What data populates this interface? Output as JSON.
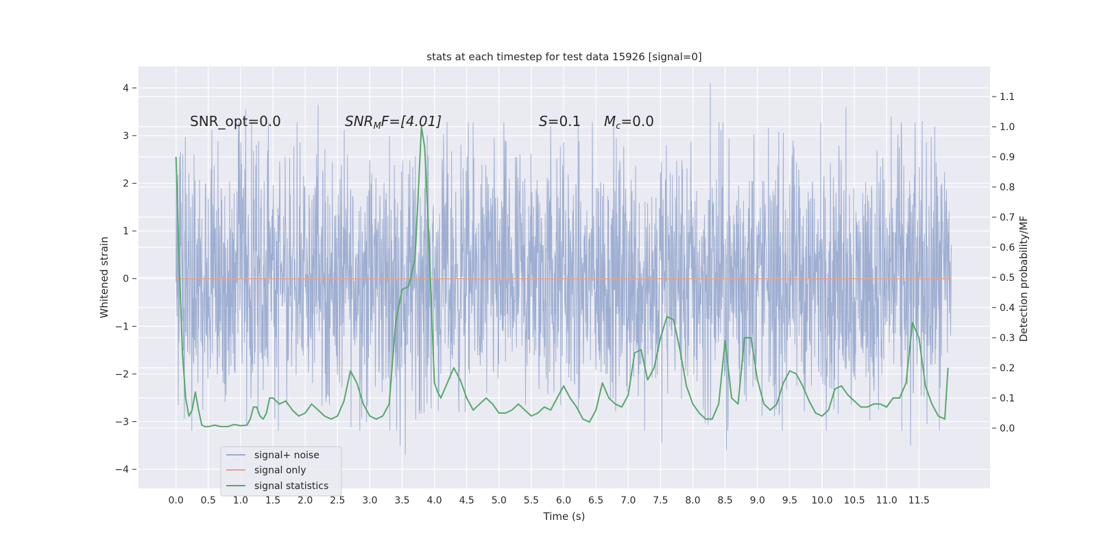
{
  "chart_data": {
    "type": "line",
    "title": "stats at each timestep for test data 15926 [signal=0]",
    "xlabel": "Time (s)",
    "ylabel_left": "Whitened strain",
    "ylabel_right": "Detection probability/MF",
    "xlim": [
      -0.58,
      12.6
    ],
    "ylim_left": [
      -4.4,
      4.45
    ],
    "ylim_right": [
      -0.2,
      1.2
    ],
    "x_ticks": [
      "0.0",
      "0.5",
      "1.0",
      "1.5",
      "2.0",
      "2.5",
      "3.0",
      "3.5",
      "4.0",
      "4.5",
      "5.0",
      "5.5",
      "6.0",
      "6.5",
      "7.0",
      "7.5",
      "8.0",
      "8.5",
      "9.0",
      "9.5",
      "10.0",
      "10.5",
      "11.0",
      "11.5"
    ],
    "y_left_ticks": [
      "4",
      "3",
      "2",
      "1",
      "0",
      "−1",
      "−2",
      "−3",
      "−4"
    ],
    "y_right_ticks": [
      "1.1",
      "1.0",
      "0.9",
      "0.8",
      "0.7",
      "0.6",
      "0.5",
      "0.4",
      "0.3",
      "0.2",
      "0.1",
      "0.0"
    ],
    "grid": true,
    "legend_placement": "lower-left",
    "annotations": {
      "snr_opt": "SNR_opt=0.0",
      "snr_mf_main": "SNR",
      "snr_mf_sub": "M",
      "snr_mf_rest": "F=[4.01]",
      "s_main": "S",
      "s_rest": "=0.1",
      "mc_main": "M",
      "mc_sub": "c",
      "mc_rest": "=0.0"
    },
    "series": [
      {
        "name": "signal+ noise",
        "color": "#9aabcf",
        "axis": "left",
        "x_range": [
          0.0,
          12.0
        ],
        "approx_envelope": [
          -1.8,
          1.8
        ],
        "approx_extremes": [
          -3.75,
          4.1
        ],
        "notable_peaks": [
          [
            0.28,
            2.6
          ],
          [
            1.08,
            3.55
          ],
          [
            2.2,
            3.65
          ],
          [
            3.47,
            -3.5
          ],
          [
            3.55,
            -3.7
          ],
          [
            5.8,
            3.2
          ],
          [
            7.52,
            -3.45
          ],
          [
            8.27,
            4.1
          ],
          [
            8.52,
            -3.6
          ],
          [
            10.37,
            3.6
          ],
          [
            11.07,
            3.4
          ],
          [
            11.37,
            -3.5
          ],
          [
            11.55,
            3.3
          ]
        ]
      },
      {
        "name": "signal only",
        "color": "#e6a38a",
        "axis": "left",
        "x": [
          0.0,
          12.0
        ],
        "y": [
          0.0,
          0.0
        ]
      },
      {
        "name": "signal statistics",
        "color": "#55a868",
        "axis": "right",
        "x": [
          0.0,
          0.05,
          0.1,
          0.15,
          0.2,
          0.25,
          0.3,
          0.35,
          0.4,
          0.45,
          0.5,
          0.6,
          0.7,
          0.8,
          0.9,
          1.0,
          1.1,
          1.15,
          1.2,
          1.25,
          1.3,
          1.35,
          1.4,
          1.45,
          1.5,
          1.6,
          1.7,
          1.8,
          1.9,
          2.0,
          2.1,
          2.2,
          2.3,
          2.4,
          2.5,
          2.6,
          2.7,
          2.8,
          2.9,
          3.0,
          3.1,
          3.2,
          3.3,
          3.4,
          3.5,
          3.6,
          3.7,
          3.8,
          3.85,
          3.9,
          4.0,
          4.05,
          4.1,
          4.2,
          4.3,
          4.4,
          4.5,
          4.6,
          4.7,
          4.8,
          4.9,
          5.0,
          5.1,
          5.2,
          5.3,
          5.4,
          5.5,
          5.6,
          5.7,
          5.8,
          5.9,
          6.0,
          6.1,
          6.2,
          6.3,
          6.4,
          6.5,
          6.6,
          6.7,
          6.8,
          6.9,
          7.0,
          7.1,
          7.2,
          7.3,
          7.4,
          7.5,
          7.6,
          7.7,
          7.8,
          7.9,
          8.0,
          8.1,
          8.2,
          8.3,
          8.4,
          8.5,
          8.6,
          8.7,
          8.8,
          8.9,
          9.0,
          9.1,
          9.2,
          9.3,
          9.4,
          9.5,
          9.6,
          9.7,
          9.8,
          9.9,
          10.0,
          10.1,
          10.2,
          10.3,
          10.4,
          10.5,
          10.6,
          10.7,
          10.8,
          10.9,
          11.0,
          11.1,
          11.2,
          11.3,
          11.4,
          11.5,
          11.6,
          11.7,
          11.8,
          11.9,
          11.95
        ],
        "y": [
          0.9,
          0.55,
          0.25,
          0.1,
          0.04,
          0.06,
          0.12,
          0.06,
          0.01,
          0.005,
          0.005,
          0.01,
          0.005,
          0.005,
          0.012,
          0.008,
          0.01,
          0.03,
          0.07,
          0.07,
          0.04,
          0.03,
          0.05,
          0.1,
          0.1,
          0.08,
          0.09,
          0.06,
          0.04,
          0.05,
          0.08,
          0.06,
          0.04,
          0.03,
          0.04,
          0.09,
          0.19,
          0.15,
          0.08,
          0.04,
          0.03,
          0.04,
          0.08,
          0.35,
          0.46,
          0.47,
          0.56,
          1.0,
          0.93,
          0.7,
          0.15,
          0.12,
          0.1,
          0.15,
          0.2,
          0.16,
          0.1,
          0.06,
          0.08,
          0.1,
          0.08,
          0.05,
          0.05,
          0.06,
          0.08,
          0.06,
          0.04,
          0.05,
          0.07,
          0.06,
          0.1,
          0.14,
          0.1,
          0.07,
          0.03,
          0.02,
          0.06,
          0.15,
          0.1,
          0.08,
          0.07,
          0.11,
          0.25,
          0.26,
          0.16,
          0.2,
          0.3,
          0.37,
          0.36,
          0.26,
          0.14,
          0.08,
          0.05,
          0.03,
          0.03,
          0.08,
          0.29,
          0.1,
          0.08,
          0.3,
          0.3,
          0.16,
          0.08,
          0.06,
          0.08,
          0.15,
          0.19,
          0.18,
          0.14,
          0.09,
          0.05,
          0.04,
          0.06,
          0.13,
          0.14,
          0.11,
          0.09,
          0.07,
          0.07,
          0.08,
          0.08,
          0.07,
          0.1,
          0.1,
          0.15,
          0.35,
          0.3,
          0.14,
          0.08,
          0.04,
          0.03,
          0.2
        ]
      }
    ]
  }
}
